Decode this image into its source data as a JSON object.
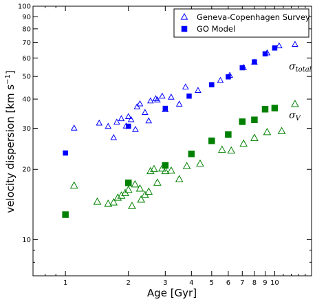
{
  "chart_data": {
    "type": "scatter",
    "title": "",
    "xlabel": "Age [Gyr]",
    "ylabel_main": "velocity dispersion [km s",
    "ylabel_sup": "−1",
    "ylabel_close": "]",
    "x_scale": "log",
    "y_scale": "log",
    "xlim": [
      0.7,
      15
    ],
    "ylim": [
      7,
      100
    ],
    "x_ticks": [
      1,
      2,
      3,
      4,
      5,
      6,
      7,
      8,
      9,
      10
    ],
    "x_tick_labels": [
      "1",
      "2",
      "3",
      "4",
      "5",
      "6",
      "7",
      "8",
      "9",
      "10"
    ],
    "y_ticks": [
      10,
      20,
      30,
      40,
      50,
      60,
      70,
      80,
      90,
      100
    ],
    "y_tick_labels": [
      "10",
      "20",
      "30",
      "40",
      "50",
      "60",
      "70",
      "80",
      "90",
      "100"
    ],
    "grid": false,
    "legend_position": "top-right",
    "legend": {
      "entries": [
        {
          "label": "Geneva-Copenhagen Survey",
          "marker": "triangle-open"
        },
        {
          "label": "GO Model",
          "marker": "square-filled"
        }
      ]
    },
    "annotations": [
      {
        "base": "σ",
        "sub": "total",
        "x": 13,
        "y": 55,
        "color": "#000000"
      },
      {
        "base": "σ",
        "sub": "V",
        "x": 13,
        "y": 34,
        "color": "#000000"
      }
    ],
    "series": [
      {
        "group": "total",
        "marker": "triangle-open",
        "color": "#0000ff",
        "points": [
          [
            1.1,
            30
          ],
          [
            1.45,
            31.5
          ],
          [
            1.6,
            30.5
          ],
          [
            1.7,
            27.3
          ],
          [
            1.76,
            31.8
          ],
          [
            1.85,
            32.9
          ],
          [
            1.95,
            30.6
          ],
          [
            2.0,
            33.6
          ],
          [
            2.06,
            32.6
          ],
          [
            2.16,
            29.6
          ],
          [
            2.2,
            37
          ],
          [
            2.27,
            38.1
          ],
          [
            2.4,
            35
          ],
          [
            2.5,
            32.2
          ],
          [
            2.55,
            39.2
          ],
          [
            2.7,
            40.1
          ],
          [
            2.75,
            39.6
          ],
          [
            2.9,
            41.1
          ],
          [
            3.0,
            36
          ],
          [
            3.2,
            40.7
          ],
          [
            3.5,
            38
          ],
          [
            3.75,
            45
          ],
          [
            4.3,
            43.5
          ],
          [
            5.5,
            48
          ],
          [
            6.1,
            50.5
          ],
          [
            7.1,
            54.5
          ],
          [
            8.0,
            57.5
          ],
          [
            9.2,
            63
          ],
          [
            10.5,
            67.5
          ],
          [
            12.5,
            68.5
          ]
        ]
      },
      {
        "group": "total",
        "marker": "square-filled",
        "color": "#0000ff",
        "points": [
          [
            1.0,
            23.5
          ],
          [
            2.0,
            30.6
          ],
          [
            3.0,
            36.5
          ],
          [
            3.9,
            41.2
          ],
          [
            5.0,
            46.1
          ],
          [
            6.0,
            49.8
          ],
          [
            7.0,
            54.5
          ],
          [
            8.0,
            57.7
          ],
          [
            9.0,
            62.5
          ],
          [
            10.0,
            66.2
          ]
        ]
      },
      {
        "group": "V",
        "marker": "triangle-open",
        "color": "#008000",
        "points": [
          [
            1.1,
            17
          ],
          [
            1.42,
            14.5
          ],
          [
            1.6,
            14.2
          ],
          [
            1.7,
            14.4
          ],
          [
            1.78,
            15.1
          ],
          [
            1.85,
            15.4
          ],
          [
            1.93,
            15.8
          ],
          [
            2.0,
            16.3
          ],
          [
            2.08,
            13.9
          ],
          [
            2.15,
            17.2
          ],
          [
            2.27,
            16.5
          ],
          [
            2.3,
            14.8
          ],
          [
            2.4,
            15.5
          ],
          [
            2.5,
            16
          ],
          [
            2.55,
            19.6
          ],
          [
            2.65,
            20
          ],
          [
            2.75,
            17.5
          ],
          [
            2.9,
            20.1
          ],
          [
            3.0,
            19.6
          ],
          [
            3.2,
            19.7
          ],
          [
            3.5,
            18.1
          ],
          [
            3.8,
            20.6
          ],
          [
            4.4,
            21.1
          ],
          [
            5.6,
            24.2
          ],
          [
            6.2,
            24
          ],
          [
            7.1,
            25.7
          ],
          [
            8.0,
            27.2
          ],
          [
            9.2,
            28.8
          ],
          [
            10.8,
            29.1
          ],
          [
            12.5,
            38
          ]
        ]
      },
      {
        "group": "V",
        "marker": "square-filled",
        "color": "#008000",
        "points": [
          [
            1.0,
            12.8
          ],
          [
            2.0,
            17.5
          ],
          [
            3.0,
            20.8
          ],
          [
            4.0,
            23.3
          ],
          [
            5.0,
            26.5
          ],
          [
            6.0,
            28.2
          ],
          [
            7.0,
            32
          ],
          [
            8.0,
            32.6
          ],
          [
            9.0,
            36.2
          ],
          [
            10.0,
            36.6
          ]
        ]
      }
    ]
  }
}
